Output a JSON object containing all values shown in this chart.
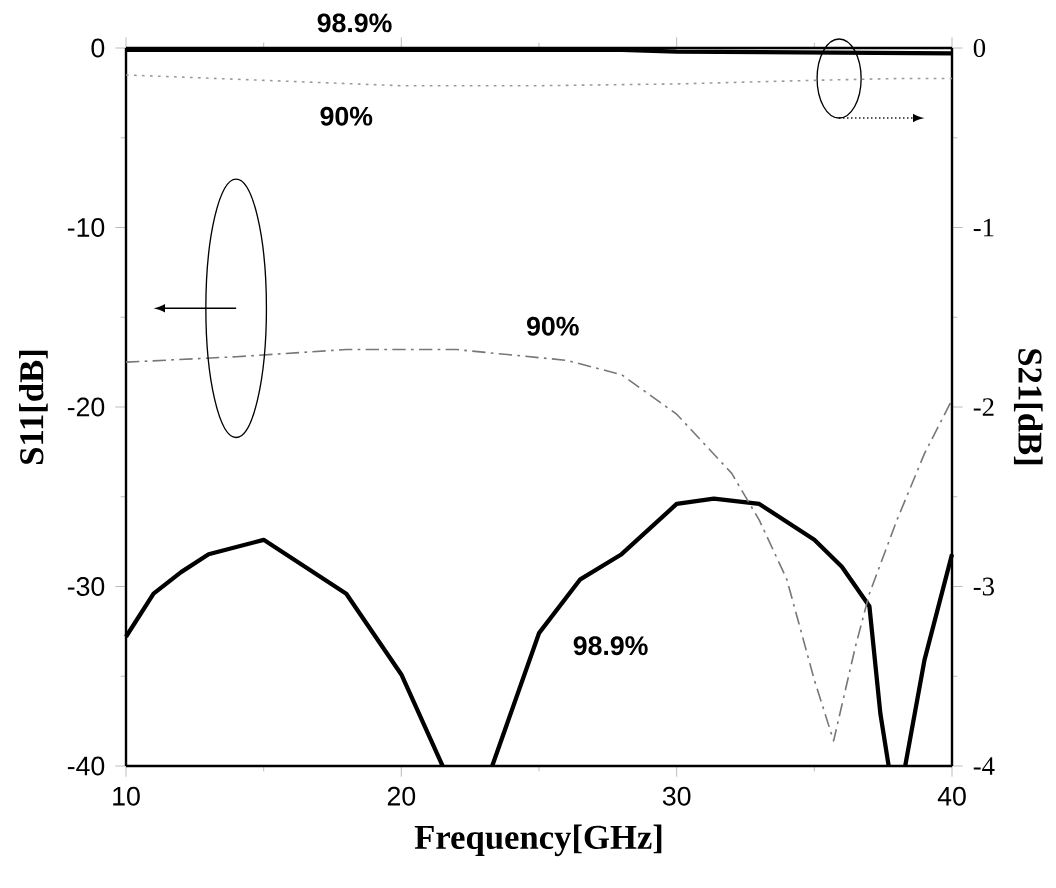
{
  "chart_data": {
    "type": "line",
    "xlabel": "Frequency[GHz]",
    "ylabel": "S11[dB]",
    "y2label": "S21[dB]",
    "xlim": [
      10,
      40
    ],
    "xticks": [
      10,
      20,
      30,
      40
    ],
    "ylim": [
      -40,
      0
    ],
    "yticks": [
      -40,
      -30,
      -20,
      -10,
      0
    ],
    "y2lim": [
      -4,
      0
    ],
    "y2ticks": [
      -4,
      -3,
      -2,
      -1,
      0
    ],
    "grid": false,
    "annotations": [
      "98.9%",
      "90%",
      "90%",
      "98.9%"
    ],
    "series": [
      {
        "color": "#000000",
        "line_style": "solid",
        "x": [
          10,
          11,
          12,
          13,
          15,
          18,
          20,
          21.5
        ],
        "values": [
          -32.8,
          -30.4,
          -29.2,
          -28.2,
          -27.4,
          -30.4,
          -34.9,
          -40
        ]
      },
      {
        "color": "#000000",
        "line_style": "solid",
        "x": [
          23.3,
          25,
          26.5,
          28,
          30,
          31.35,
          33,
          35,
          36,
          37,
          37.4,
          37.7
        ],
        "values": [
          -40,
          -32.6,
          -29.6,
          -28.2,
          -25.4,
          -25.1,
          -25.4,
          -27.4,
          -28.9,
          -31.1,
          -37.1,
          -40
        ]
      },
      {
        "color": "#000000",
        "line_style": "solid",
        "x": [
          38.3,
          39,
          40
        ],
        "values": [
          -40,
          -34.1,
          -28.2
        ]
      },
      {
        "color": "#777777",
        "line_style": "dashed",
        "x": [
          10,
          14,
          18,
          22,
          26,
          28,
          30,
          32,
          33,
          34,
          35,
          35.7,
          36.5,
          37,
          38,
          39,
          40
        ],
        "values": [
          -17.5,
          -17.2,
          -16.8,
          -16.8,
          -17.4,
          -18.2,
          -20.4,
          -23.7,
          -26.3,
          -29.6,
          -35.2,
          -38.6,
          -33.3,
          -30.4,
          -26.3,
          -22.6,
          -19.6
        ]
      },
      {
        "color": "#000000",
        "line_style": "solid",
        "axis": "y2",
        "x": [
          10,
          20,
          28,
          30,
          40
        ],
        "values": [
          -0.01,
          -0.01,
          -0.01,
          -0.02,
          -0.03
        ]
      },
      {
        "color": "#999999",
        "line_style": "dotted",
        "axis": "y2",
        "x": [
          10,
          15,
          20,
          25,
          30,
          35,
          38,
          40
        ],
        "values": [
          -0.15,
          -0.18,
          -0.21,
          -0.21,
          -0.2,
          -0.18,
          -0.17,
          -0.17
        ]
      }
    ]
  }
}
